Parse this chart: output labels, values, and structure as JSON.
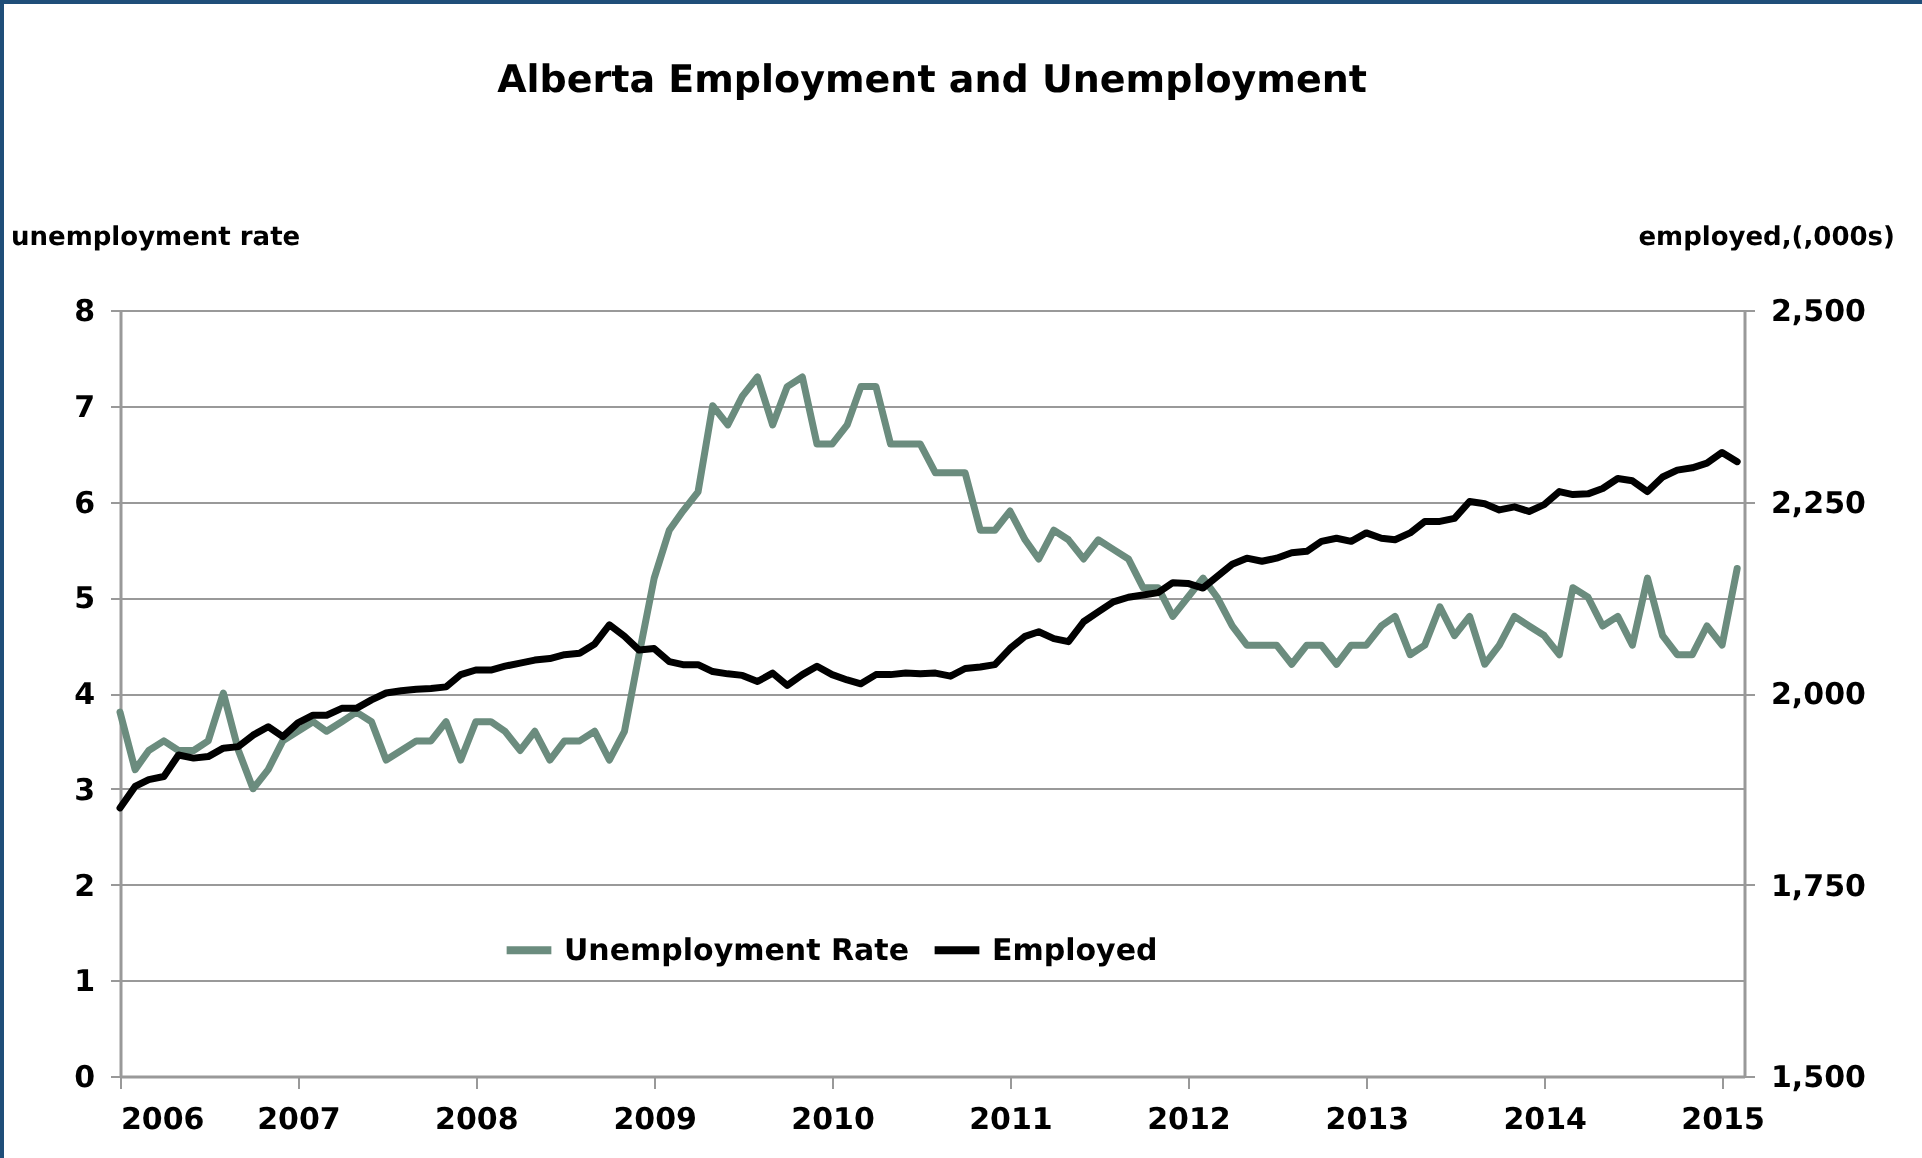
{
  "chart_data": {
    "type": "line",
    "title": "Alberta Employment and Unemployment",
    "ylabel": "unemployment rate",
    "y2label": "employed,(,000s)",
    "x": [
      "2006-01",
      "2006-02",
      "2006-03",
      "2006-04",
      "2006-05",
      "2006-06",
      "2006-07",
      "2006-08",
      "2006-09",
      "2006-10",
      "2006-11",
      "2006-12",
      "2007-01",
      "2007-02",
      "2007-03",
      "2007-04",
      "2007-05",
      "2007-06",
      "2007-07",
      "2007-08",
      "2007-09",
      "2007-10",
      "2007-11",
      "2007-12",
      "2008-01",
      "2008-02",
      "2008-03",
      "2008-04",
      "2008-05",
      "2008-06",
      "2008-07",
      "2008-08",
      "2008-09",
      "2008-10",
      "2008-11",
      "2008-12",
      "2009-01",
      "2009-02",
      "2009-03",
      "2009-04",
      "2009-05",
      "2009-06",
      "2009-07",
      "2009-08",
      "2009-09",
      "2009-10",
      "2009-11",
      "2009-12",
      "2010-01",
      "2010-02",
      "2010-03",
      "2010-04",
      "2010-05",
      "2010-06",
      "2010-07",
      "2010-08",
      "2010-09",
      "2010-10",
      "2010-11",
      "2010-12",
      "2011-01",
      "2011-02",
      "2011-03",
      "2011-04",
      "2011-05",
      "2011-06",
      "2011-07",
      "2011-08",
      "2011-09",
      "2011-10",
      "2011-11",
      "2011-12",
      "2012-01",
      "2012-02",
      "2012-03",
      "2012-04",
      "2012-05",
      "2012-06",
      "2012-07",
      "2012-08",
      "2012-09",
      "2012-10",
      "2012-11",
      "2012-12",
      "2013-01",
      "2013-02",
      "2013-03",
      "2013-04",
      "2013-05",
      "2013-06",
      "2013-07",
      "2013-08",
      "2013-09",
      "2013-10",
      "2013-11",
      "2013-12",
      "2014-01",
      "2014-02",
      "2014-03",
      "2014-04",
      "2014-05",
      "2014-06",
      "2014-07",
      "2014-08",
      "2014-09",
      "2014-10",
      "2014-11",
      "2014-12",
      "2015-01",
      "2015-02"
    ],
    "series": [
      {
        "name": "Unemployment Rate",
        "color": "#6b8c7e",
        "values": [
          3.8,
          3.2,
          3.4,
          3.5,
          3.4,
          3.4,
          3.5,
          4.0,
          3.4,
          3.0,
          3.2,
          3.5,
          3.6,
          3.7,
          3.6,
          3.7,
          3.8,
          3.7,
          3.3,
          3.4,
          3.5,
          3.5,
          3.7,
          3.3,
          3.7,
          3.7,
          3.6,
          3.4,
          3.6,
          3.3,
          3.5,
          3.5,
          3.6,
          3.3,
          3.6,
          4.4,
          5.2,
          5.7,
          5.9,
          6.1,
          7.0,
          6.8,
          7.1,
          7.3,
          6.8,
          7.2,
          7.3,
          6.6,
          6.6,
          6.8,
          7.2,
          7.2,
          6.6,
          6.6,
          6.6,
          6.3,
          6.3,
          6.3,
          5.7,
          5.7,
          5.9,
          5.6,
          5.4,
          5.7,
          5.6,
          5.4,
          5.6,
          5.5,
          5.4,
          5.1,
          5.1,
          4.8,
          5.0,
          5.2,
          5.0,
          4.7,
          4.5,
          4.5,
          4.5,
          4.3,
          4.5,
          4.5,
          4.3,
          4.5,
          4.5,
          4.7,
          4.8,
          4.4,
          4.5,
          4.9,
          4.6,
          4.8,
          4.3,
          4.5,
          4.8,
          4.7,
          4.6,
          4.4,
          5.1,
          5.0,
          4.7,
          4.8,
          4.5,
          5.2,
          4.6,
          4.4,
          4.4,
          4.7,
          4.5,
          5.3
        ]
      },
      {
        "name": "Employed",
        "color": "#000000",
        "axis": "y2",
        "values": [
          1850,
          1878,
          1887,
          1891,
          1919,
          1915,
          1917,
          1928,
          1930,
          1945,
          1956,
          1943,
          1961,
          1971,
          1971,
          1980,
          1980,
          1991,
          2000,
          2003,
          2005,
          2006,
          2008,
          2024,
          2030,
          2030,
          2035,
          2039,
          2043,
          2045,
          2050,
          2052,
          2064,
          2089,
          2074,
          2056,
          2058,
          2041,
          2037,
          2037,
          2028,
          2025,
          2023,
          2015,
          2026,
          2010,
          2024,
          2035,
          2024,
          2017,
          2012,
          2024,
          2024,
          2026,
          2025,
          2026,
          2022,
          2032,
          2034,
          2037,
          2058,
          2074,
          2080,
          2071,
          2067,
          2093,
          2106,
          2119,
          2125,
          2128,
          2131,
          2144,
          2143,
          2137,
          2152,
          2168,
          2176,
          2172,
          2176,
          2183,
          2185,
          2198,
          2202,
          2198,
          2209,
          2202,
          2200,
          2209,
          2224,
          2224,
          2228,
          2250,
          2247,
          2239,
          2243,
          2237,
          2246,
          2263,
          2259,
          2260,
          2267,
          2280,
          2277,
          2263,
          2282,
          2291,
          2294,
          2300,
          2314,
          2302
        ]
      }
    ],
    "xlim": [
      "2006-01",
      "2015-02-15"
    ],
    "xticks": [
      "2006",
      "2007",
      "2008",
      "2009",
      "2010",
      "2011",
      "2012",
      "2013",
      "2014",
      "2015"
    ],
    "ylim": [
      0,
      8
    ],
    "yticks": [
      0,
      1,
      2,
      3,
      4,
      5,
      6,
      7,
      8
    ],
    "y2lim": [
      1500,
      2500
    ],
    "y2ticks": [
      {
        "value": 1500,
        "label": "1,500"
      },
      {
        "value": 1750,
        "label": "1,750"
      },
      {
        "value": 2000,
        "label": "2,000"
      },
      {
        "value": 2250,
        "label": "2,250"
      },
      {
        "value": 2500,
        "label": "2,500"
      }
    ],
    "grid": "y",
    "legend": "bottom"
  }
}
